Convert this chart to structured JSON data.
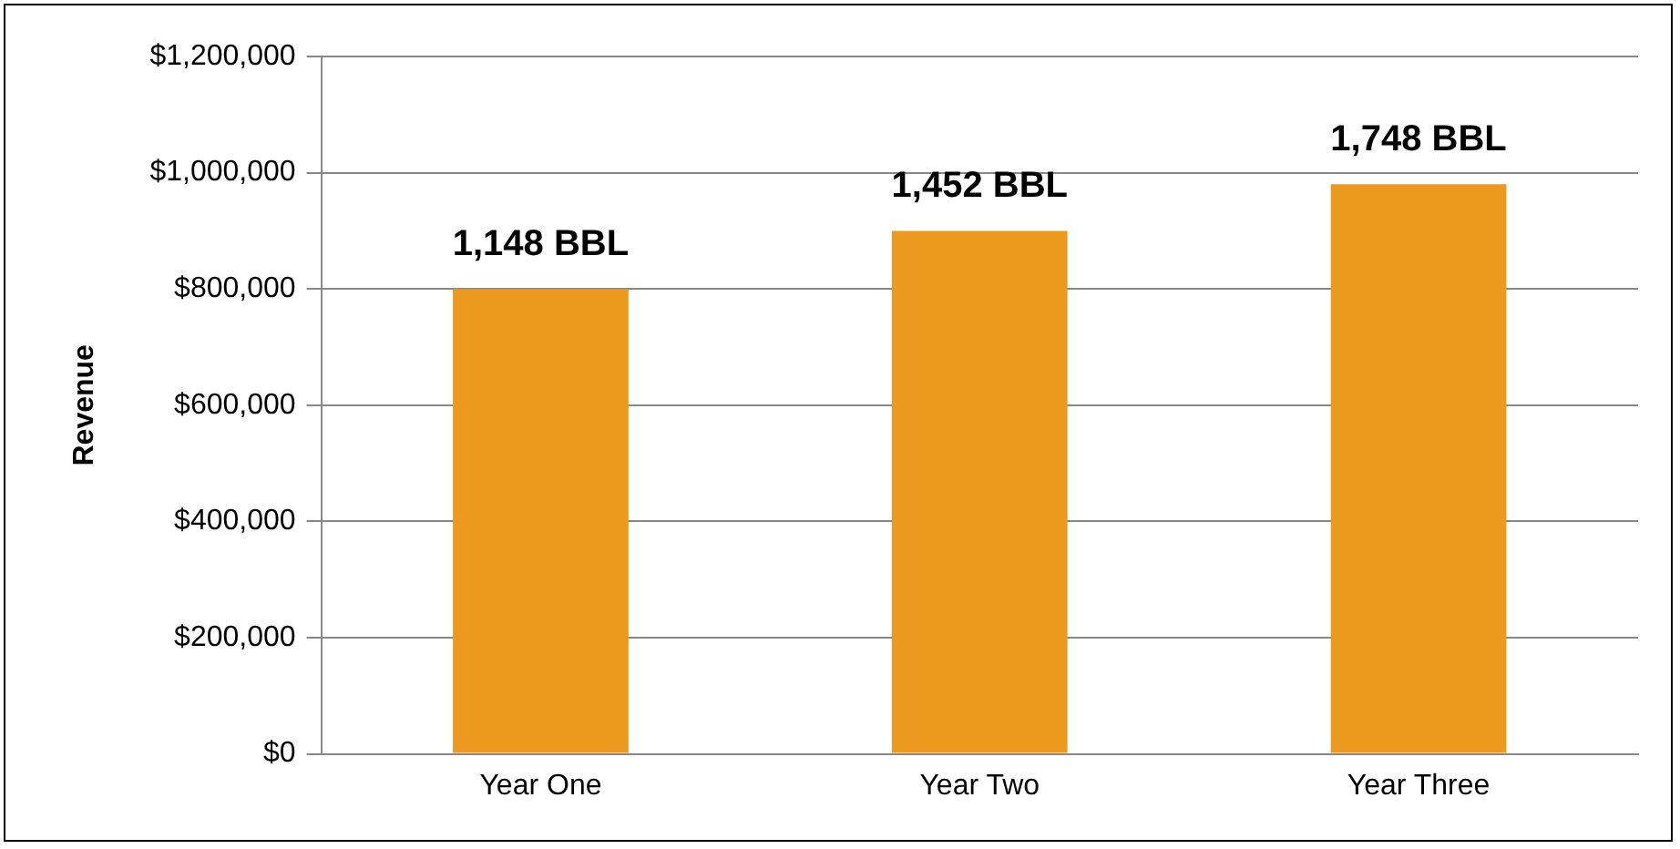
{
  "chart_data": {
    "type": "bar",
    "ylabel": "Revenue",
    "categories": [
      "Year One",
      "Year Two",
      "Year Three"
    ],
    "values": [
      800000,
      900000,
      980000
    ],
    "annotations": [
      {
        "text": "1,148 BBL",
        "x": "Year One",
        "y": 800000
      },
      {
        "text": "1,452 BBL",
        "x": "Year Two",
        "y": 900000
      },
      {
        "text": "1,748 BBL",
        "x": "Year Three",
        "y": 980000
      }
    ],
    "color": "#eb9a1f",
    "ylim": [
      0,
      1200000
    ],
    "yticks": [
      {
        "value": 0,
        "label": "$0"
      },
      {
        "value": 200000,
        "label": "$200,000"
      },
      {
        "value": 400000,
        "label": "$400,000"
      },
      {
        "value": 600000,
        "label": "$600,000"
      },
      {
        "value": 800000,
        "label": "$800,000"
      },
      {
        "value": 1000000,
        "label": "$1,000,000"
      },
      {
        "value": 1200000,
        "label": "$1,200,000"
      }
    ],
    "grid": "y",
    "legend": false
  }
}
